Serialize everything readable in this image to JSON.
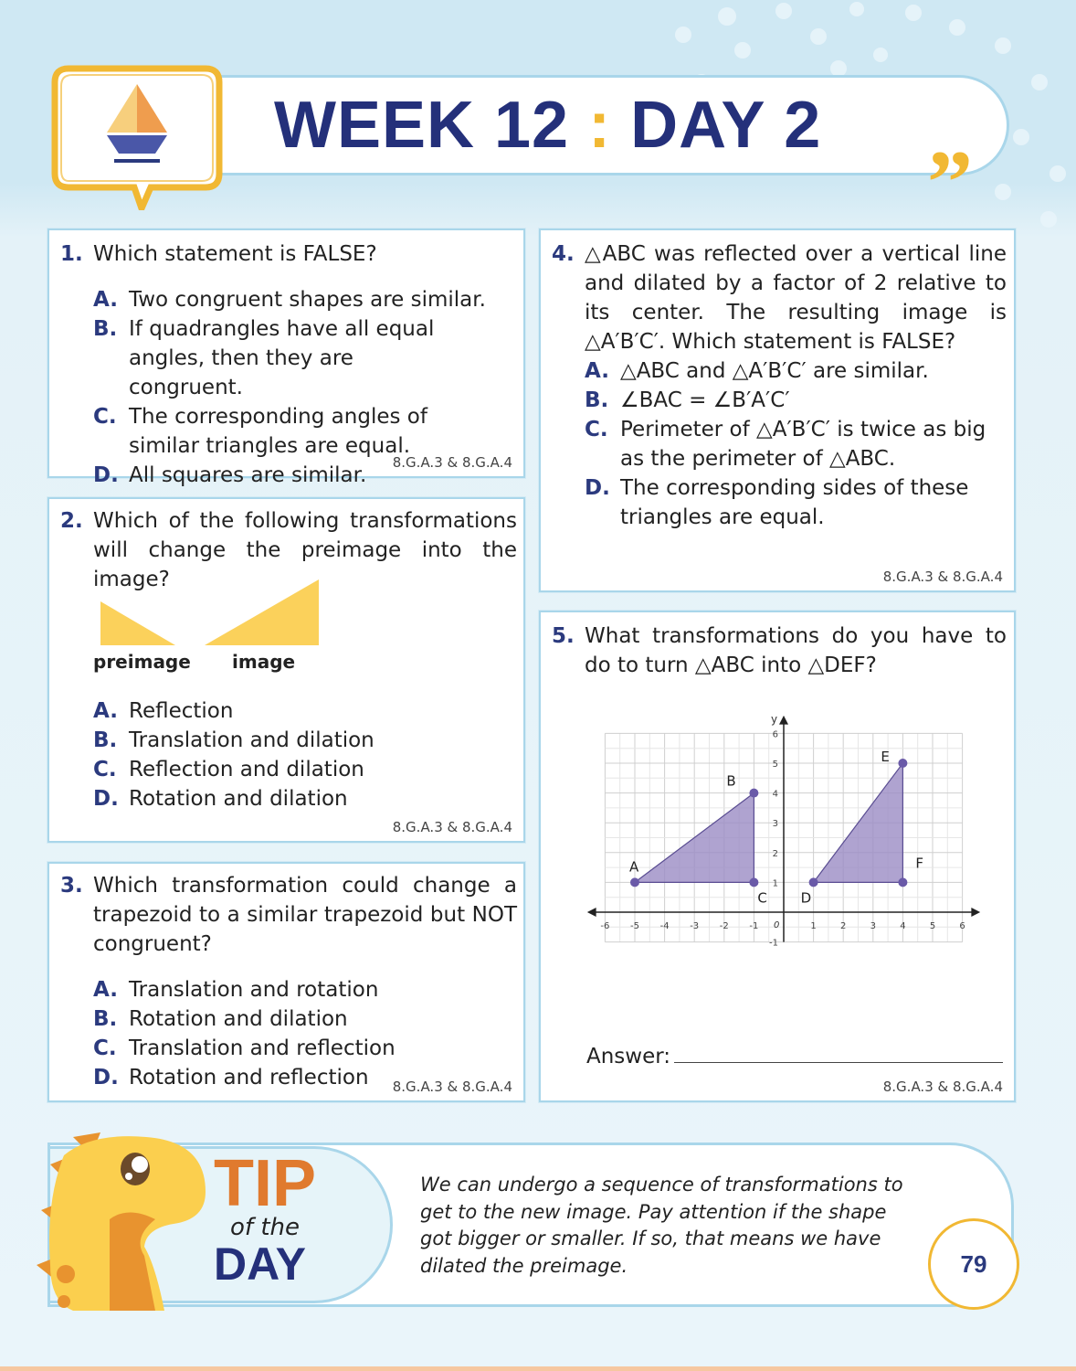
{
  "header": {
    "week": "WEEK 12",
    "separator": ":",
    "day": "DAY 2",
    "icon": "pen-nib-icon"
  },
  "questions": [
    {
      "number": "1.",
      "prompt": "Which statement is FALSE?",
      "options": [
        {
          "letter": "A.",
          "text": "Two congruent shapes are similar."
        },
        {
          "letter": "B.",
          "text": "If quadrangles have all equal angles, then they are congruent."
        },
        {
          "letter": "C.",
          "text": "The corresponding angles of similar triangles are equal."
        },
        {
          "letter": "D.",
          "text": "All squares are similar."
        }
      ],
      "standard": "8.G.A.3 & 8.G.A.4"
    },
    {
      "number": "2.",
      "prompt": "Which of the following transformations will change the preimage into the image?",
      "figure_labels": {
        "preimage": "preimage",
        "image": "image"
      },
      "options": [
        {
          "letter": "A.",
          "text": "Reflection"
        },
        {
          "letter": "B.",
          "text": "Translation and dilation"
        },
        {
          "letter": "C.",
          "text": "Reflection and dilation"
        },
        {
          "letter": "D.",
          "text": "Rotation and dilation"
        }
      ],
      "standard": "8.G.A.3 & 8.G.A.4"
    },
    {
      "number": "3.",
      "prompt": "Which transformation could change a trapezoid to a similar trapezoid but NOT congruent?",
      "options": [
        {
          "letter": "A.",
          "text": "Translation and rotation"
        },
        {
          "letter": "B.",
          "text": "Rotation and dilation"
        },
        {
          "letter": "C.",
          "text": "Translation and reflection"
        },
        {
          "letter": "D.",
          "text": "Rotation and reflection"
        }
      ],
      "standard": "8.G.A.3 & 8.G.A.4"
    },
    {
      "number": "4.",
      "prompt": "△ABC was reflected over a vertical line and dilated by a factor of 2 relative to its center. The resulting image is △A′B′C′. Which statement is FALSE?",
      "options": [
        {
          "letter": "A.",
          "text": "△ABC and △A′B′C′ are similar."
        },
        {
          "letter": "B.",
          "text": "∠BAC = ∠B′A′C′"
        },
        {
          "letter": "C.",
          "text": "Perimeter of △A′B′C′ is twice as big as the perimeter of △ABC."
        },
        {
          "letter": "D.",
          "text": "The corresponding sides of these triangles are equal."
        }
      ],
      "standard": "8.G.A.3 & 8.G.A.4"
    },
    {
      "number": "5.",
      "prompt": "What transformations do you have to do to turn △ABC into △DEF?",
      "answer_label": "Answer:",
      "standard": "8.G.A.3 & 8.G.A.4"
    }
  ],
  "graph": {
    "xlim": [
      -6,
      6
    ],
    "ylim": [
      -1,
      6
    ],
    "y_axis_label": "y",
    "origin_label": "0",
    "x_ticks": [
      "-6",
      "-5",
      "-4",
      "-3",
      "-2",
      "-1",
      "1",
      "2",
      "3",
      "4",
      "5",
      "6"
    ],
    "y_ticks": [
      "-1",
      "1",
      "2",
      "3",
      "4",
      "5",
      "6"
    ],
    "triangles": [
      {
        "name": "ABC",
        "points": [
          {
            "label": "A",
            "x": -5,
            "y": 1
          },
          {
            "label": "B",
            "x": -1,
            "y": 4
          },
          {
            "label": "C",
            "x": -1,
            "y": 1
          }
        ]
      },
      {
        "name": "DEF",
        "points": [
          {
            "label": "D",
            "x": 1,
            "y": 1
          },
          {
            "label": "E",
            "x": 4,
            "y": 5
          },
          {
            "label": "F",
            "x": 4,
            "y": 1
          }
        ]
      }
    ],
    "fill_color": "#9b8cc4",
    "point_color": "#6a5aa8"
  },
  "tip": {
    "tip": "TIP",
    "of_the": "of the",
    "day": "DAY",
    "text": "We can undergo a sequence of transformations to get to the new image. Pay attention if the shape got bigger or smaller. If so, that means we have dilated the preimage."
  },
  "page_number": "79",
  "colors": {
    "navy": "#24307a",
    "gold": "#f1b833",
    "orange": "#e07a2e",
    "border": "#a9d6ea"
  }
}
